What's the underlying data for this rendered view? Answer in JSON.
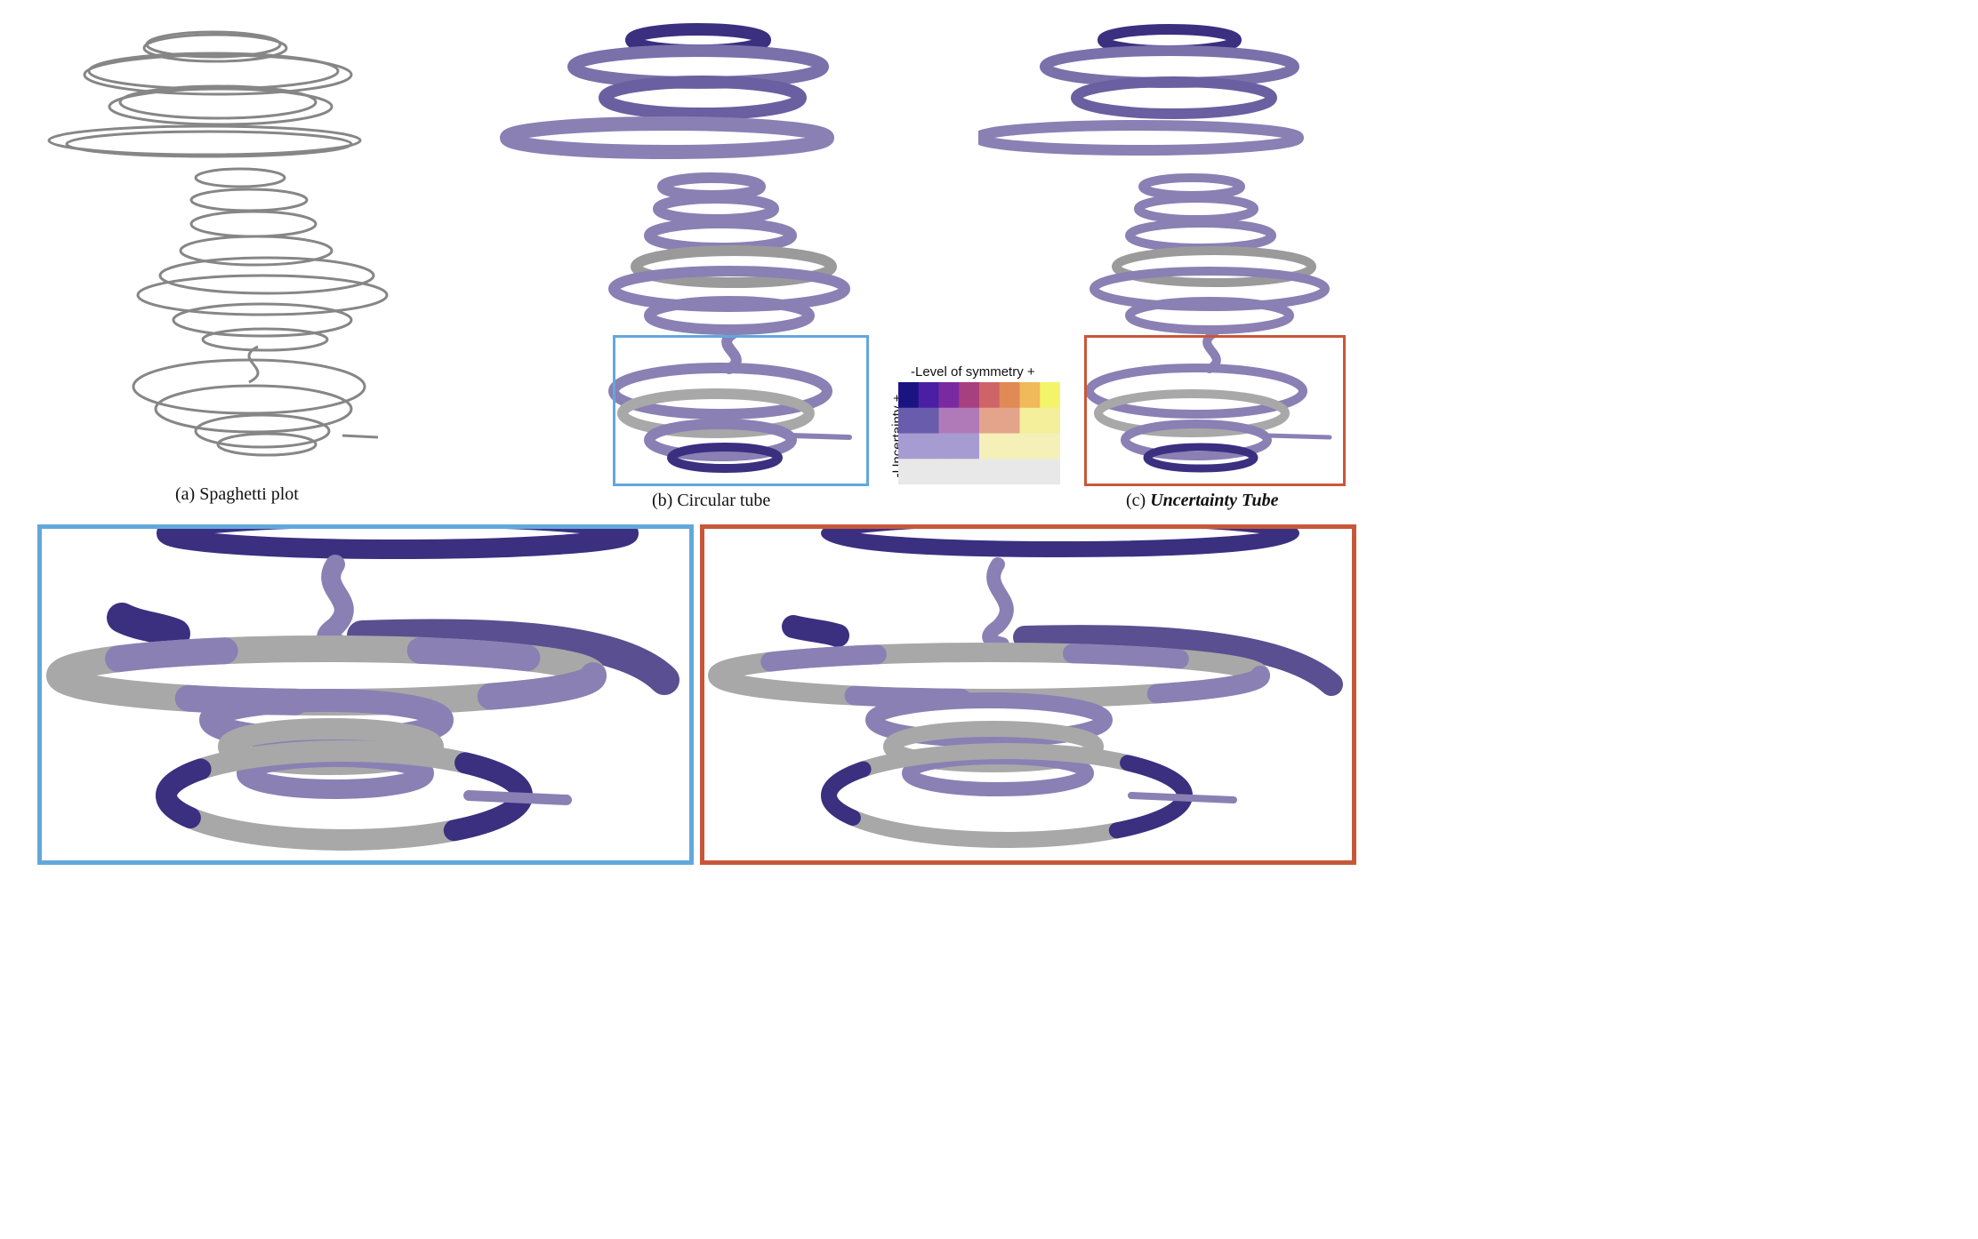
{
  "captions": {
    "a": "(a) Spaghetti plot",
    "b": "(b) Circular tube",
    "c_prefix": "(c) ",
    "c_em": "Uncertainty Tube"
  },
  "legend": {
    "title": "-Level of symmetry +",
    "ylabel": "-Uncertainty +",
    "rows": [
      [
        "#1a1480",
        "#4b1fa3",
        "#7a2aa0",
        "#a8407f",
        "#cf6468",
        "#e08a55",
        "#f0b95a",
        "#f4f46a"
      ],
      [
        "#6a5cac",
        "#6a5cac",
        "#b07ab8",
        "#b07ab8",
        "#e4a48c",
        "#e4a48c",
        "#f3ef9a",
        "#f3ef9a"
      ],
      [
        "#a69cd2",
        "#a69cd2",
        "#a69cd2",
        "#a69cd2",
        "#f5f0b8",
        "#f5f0b8",
        "#f5f0b8",
        "#f5f0b8"
      ],
      [
        "#e8e8e8",
        "#e8e8e8",
        "#e8e8e8",
        "#e8e8e8",
        "#e8e8e8",
        "#e8e8e8",
        "#e8e8e8",
        "#e8e8e8"
      ]
    ]
  },
  "colors": {
    "blue_frame": "#62a8dc",
    "orange_frame": "#c8573a",
    "tube": "#8a80b4",
    "tube_dark": "#3b2f80",
    "grey_tube": "#a8a8a8",
    "spaghetti": "#7d7d7d"
  }
}
